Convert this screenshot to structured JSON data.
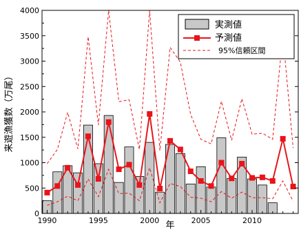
{
  "chart_data": {
    "type": "bar",
    "xlabel": "年",
    "ylabel": "来遊漁獲数（万尾）",
    "xlim": [
      1989.5,
      2014.5
    ],
    "ylim": [
      0,
      4000
    ],
    "x_ticks": [
      1990,
      1995,
      2000,
      2005,
      2010
    ],
    "y_ticks": [
      0,
      500,
      1000,
      1500,
      2000,
      2500,
      3000,
      3500,
      4000
    ],
    "grid": false,
    "legend_position": "top-right",
    "colors": {
      "bar_fill": "#c8c8c8",
      "bar_stroke": "#000000",
      "predicted": "#e8141a",
      "interval": "#e8141a"
    },
    "x": [
      1990,
      1991,
      1992,
      1993,
      1994,
      1995,
      1996,
      1997,
      1998,
      1999,
      2000,
      2001,
      2002,
      2003,
      2004,
      2005,
      2006,
      2007,
      2008,
      2009,
      2010,
      2011,
      2012,
      2013,
      2014
    ],
    "series": [
      {
        "name": "実測値",
        "kind": "bar",
        "values": [
          250,
          820,
          940,
          800,
          1740,
          980,
          1930,
          610,
          1310,
          730,
          1400,
          420,
          1360,
          1180,
          580,
          920,
          520,
          1490,
          690,
          1110,
          680,
          560,
          210,
          null,
          null
        ]
      },
      {
        "name": "予測値",
        "kind": "line-marker",
        "values": [
          410,
          540,
          900,
          560,
          1520,
          680,
          1800,
          870,
          960,
          560,
          1960,
          490,
          1430,
          1260,
          830,
          640,
          540,
          1000,
          690,
          980,
          700,
          710,
          640,
          1470,
          530
        ]
      },
      {
        "name": "95%信頼区間",
        "kind": "dashed",
        "upper": [
          980,
          1260,
          1990,
          1270,
          3480,
          1740,
          4000,
          2200,
          2240,
          1260,
          4000,
          1240,
          3270,
          2980,
          1950,
          1460,
          1370,
          2210,
          1440,
          2260,
          1560,
          1580,
          1460,
          3510,
          1290
        ],
        "lower": [
          160,
          230,
          340,
          250,
          680,
          330,
          870,
          390,
          400,
          250,
          900,
          210,
          590,
          530,
          320,
          300,
          230,
          430,
          300,
          420,
          310,
          310,
          290,
          640,
          240
        ]
      }
    ]
  }
}
